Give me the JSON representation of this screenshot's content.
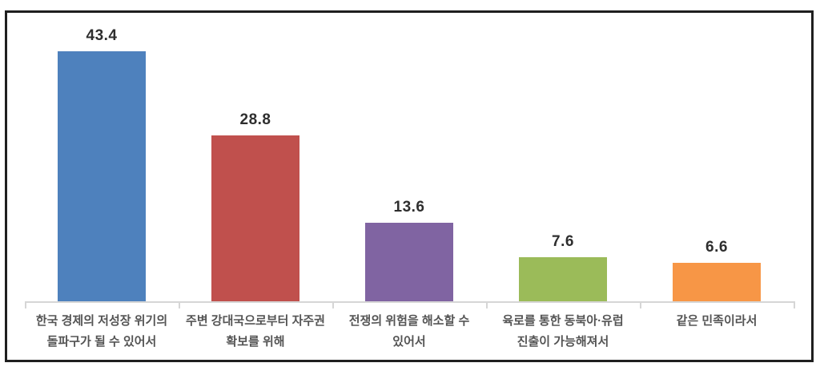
{
  "chart_data": {
    "type": "bar",
    "title": "",
    "xlabel": "",
    "ylabel": "",
    "categories": [
      "한국 경제의 저성장 위기의\n돌파구가 될 수 있어서",
      "주변 강대국으로부터 자주권\n확보를 위해",
      "전쟁의 위험을 해소할 수\n있어서",
      "육로를 통한 동북아·유럽\n진출이 가능해져서",
      "같은 민족이라서"
    ],
    "values": [
      43.4,
      28.8,
      13.6,
      7.6,
      6.6
    ],
    "value_labels": [
      "43.4",
      "28.8",
      "13.6",
      "7.6",
      "6.6"
    ],
    "bar_colors": [
      "#4E81BD",
      "#C0504D",
      "#8064A2",
      "#9BBB59",
      "#F79646"
    ],
    "ylim": [
      0,
      50
    ],
    "grid": false,
    "legend": false,
    "colors": {
      "frame_border": "#1f1f1f",
      "axis": "#d6d6d6",
      "value_label_text": "#2e2e2e",
      "category_label_text": "#545454",
      "background": "#ffffff"
    }
  }
}
